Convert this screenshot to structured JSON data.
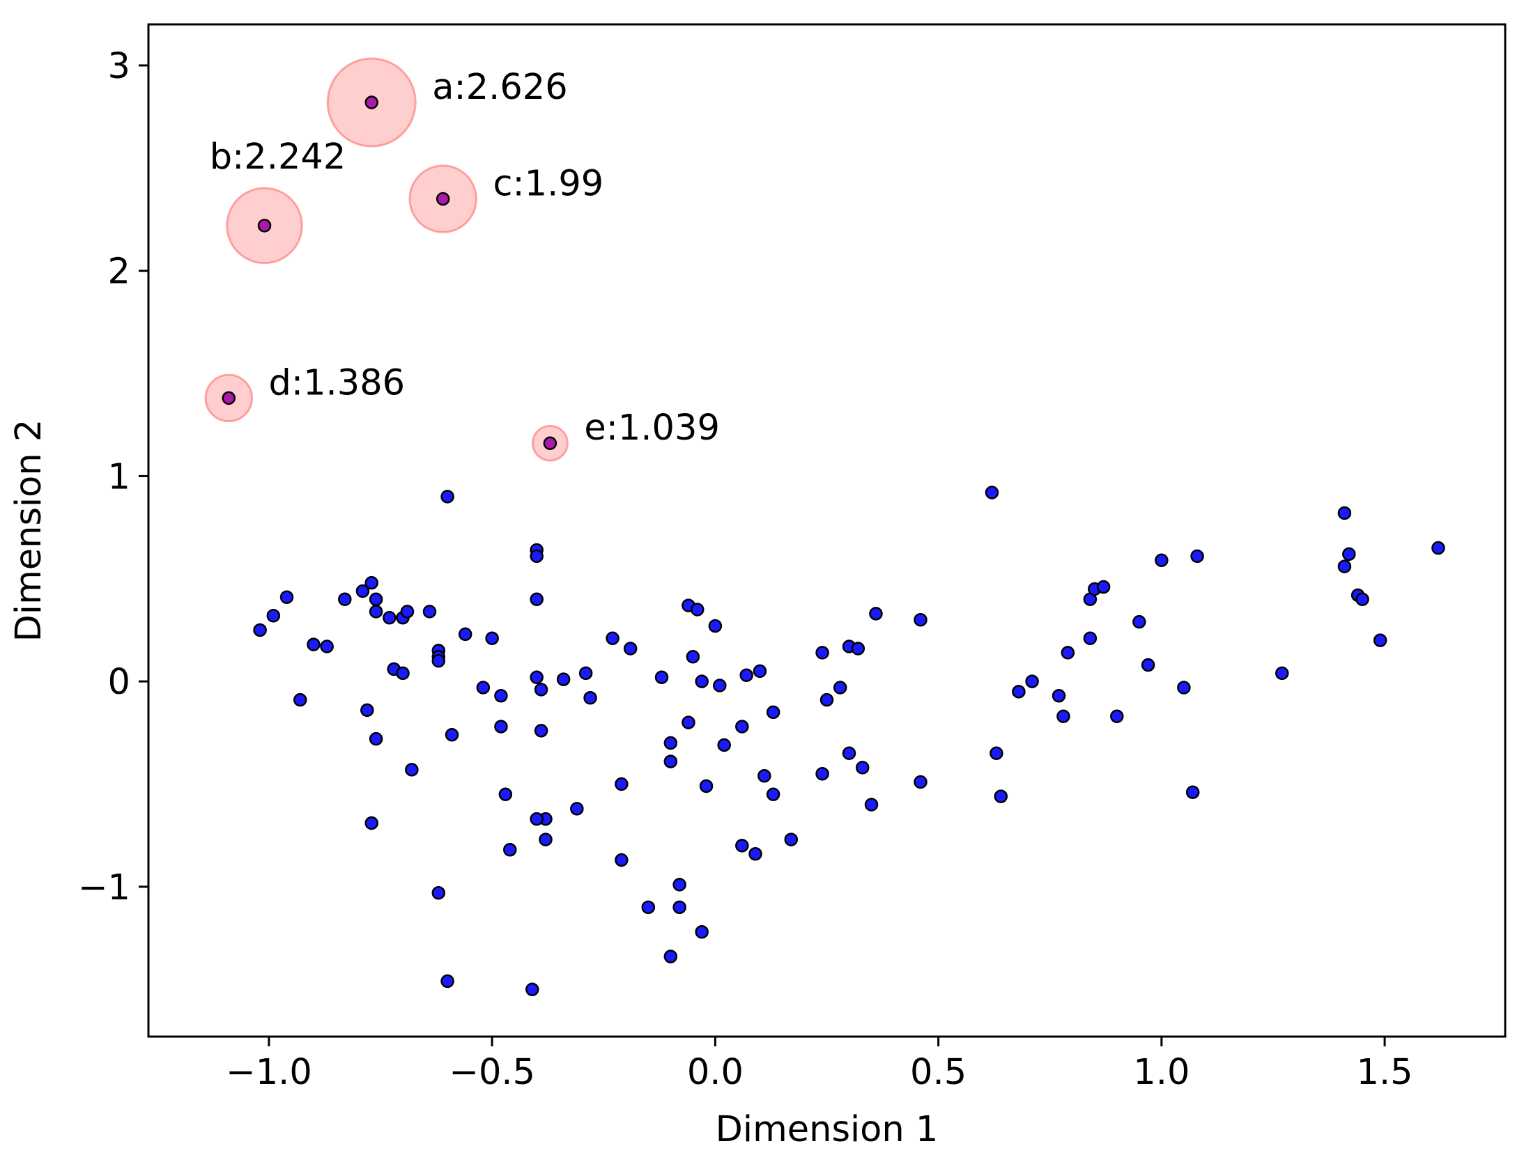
{
  "chart_data": {
    "type": "scatter",
    "title": "",
    "xlabel": "Dimension 1",
    "ylabel": "Dimension 2",
    "xlim": [
      -1.27,
      1.77
    ],
    "ylim": [
      -1.73,
      3.2
    ],
    "xticks": [
      -1.0,
      -0.5,
      0.0,
      0.5,
      1.0,
      1.5
    ],
    "xtick_labels": [
      "−1.0",
      "−0.5",
      "0.0",
      "0.5",
      "1.0",
      "1.5"
    ],
    "yticks": [
      -1,
      0,
      1,
      2,
      3
    ],
    "ytick_labels": [
      "−1",
      "0",
      "1",
      "2",
      "3"
    ],
    "grid": false,
    "colors": {
      "point_fill": "#1a1aff",
      "point_edge": "#000000",
      "highlight_fill": "#ff8080",
      "highlight_edge": "#ff6666"
    },
    "series": [
      {
        "name": "points",
        "x": [
          -0.6,
          -1.02,
          -0.99,
          -0.96,
          -0.93,
          -0.9,
          -0.87,
          -0.83,
          -0.79,
          -0.77,
          -0.78,
          -0.76,
          -0.72,
          -0.7,
          -0.7,
          -0.69,
          -0.68,
          -0.64,
          -0.62,
          -0.62,
          -0.59,
          -0.56,
          -0.5,
          -0.48,
          -0.48,
          -0.47,
          -0.46,
          -0.41,
          -0.4,
          -0.4,
          -0.4,
          -0.39,
          -0.39,
          -0.38,
          -0.38,
          -0.34,
          -0.31,
          -0.29,
          -0.28,
          -0.23,
          -0.21,
          -0.21,
          -0.19,
          -0.15,
          -0.12,
          -0.1,
          -0.1,
          -0.1,
          -0.08,
          -0.08,
          -0.06,
          -0.06,
          -0.05,
          -0.04,
          -0.03,
          -0.03,
          -0.02,
          0.0,
          0.01,
          0.02,
          0.06,
          0.06,
          0.07,
          0.09,
          0.1,
          0.11,
          0.13,
          0.13,
          0.17,
          0.24,
          0.24,
          0.25,
          0.28,
          0.3,
          0.3,
          0.32,
          0.33,
          0.35,
          0.36,
          0.46,
          0.46,
          0.62,
          0.63,
          0.64,
          0.68,
          0.71,
          0.77,
          0.78,
          0.79,
          0.84,
          0.84,
          0.85,
          0.87,
          0.9,
          0.95,
          0.97,
          1.0,
          1.05,
          1.07,
          1.08,
          1.27,
          1.41,
          1.41,
          1.42,
          1.44,
          1.45,
          1.49,
          1.62,
          -0.73,
          -0.76,
          -0.62,
          -0.6,
          -0.4,
          -0.4,
          -0.77,
          -0.76,
          -0.52,
          -0.62
        ],
        "y": [
          0.9,
          0.25,
          0.32,
          0.41,
          -0.09,
          0.18,
          0.17,
          0.4,
          0.44,
          0.48,
          -0.14,
          -0.28,
          0.06,
          0.31,
          0.04,
          0.34,
          -0.43,
          0.34,
          0.15,
          0.12,
          -0.26,
          0.23,
          0.21,
          -0.07,
          -0.22,
          -0.55,
          -0.82,
          -1.5,
          0.64,
          0.4,
          0.02,
          -0.24,
          -0.04,
          -0.67,
          -0.77,
          0.01,
          -0.62,
          0.04,
          -0.08,
          0.21,
          -0.5,
          -0.87,
          0.16,
          -1.1,
          0.02,
          -0.3,
          -0.39,
          -1.34,
          -0.99,
          -1.1,
          0.37,
          -0.2,
          0.12,
          0.35,
          0.0,
          -1.22,
          -0.51,
          0.27,
          -0.02,
          -0.31,
          -0.8,
          -0.22,
          0.03,
          -0.84,
          0.05,
          -0.46,
          -0.15,
          -0.55,
          -0.77,
          0.14,
          -0.45,
          -0.09,
          -0.03,
          0.17,
          -0.35,
          0.16,
          -0.42,
          -0.6,
          0.33,
          0.3,
          -0.49,
          0.92,
          -0.35,
          -0.56,
          -0.05,
          0.0,
          -0.07,
          -0.17,
          0.14,
          0.4,
          0.21,
          0.45,
          0.46,
          -0.17,
          0.29,
          0.08,
          0.59,
          -0.03,
          -0.54,
          0.61,
          0.04,
          0.82,
          0.56,
          0.62,
          0.42,
          0.4,
          0.2,
          0.65,
          0.31,
          0.4,
          -1.03,
          -1.46,
          -0.67,
          0.61,
          -0.69,
          0.34,
          -0.03,
          0.1
        ]
      }
    ],
    "highlights": [
      {
        "label": "a:2.626",
        "x": -0.77,
        "y": 2.82,
        "score": 2.626
      },
      {
        "label": "b:2.242",
        "x": -1.01,
        "y": 2.22,
        "score": 2.242
      },
      {
        "label": "c:1.99",
        "x": -0.61,
        "y": 2.35,
        "score": 1.99
      },
      {
        "label": "d:1.386",
        "x": -1.09,
        "y": 1.38,
        "score": 1.386
      },
      {
        "label": "e:1.039",
        "x": -0.37,
        "y": 1.16,
        "score": 1.039
      }
    ]
  }
}
